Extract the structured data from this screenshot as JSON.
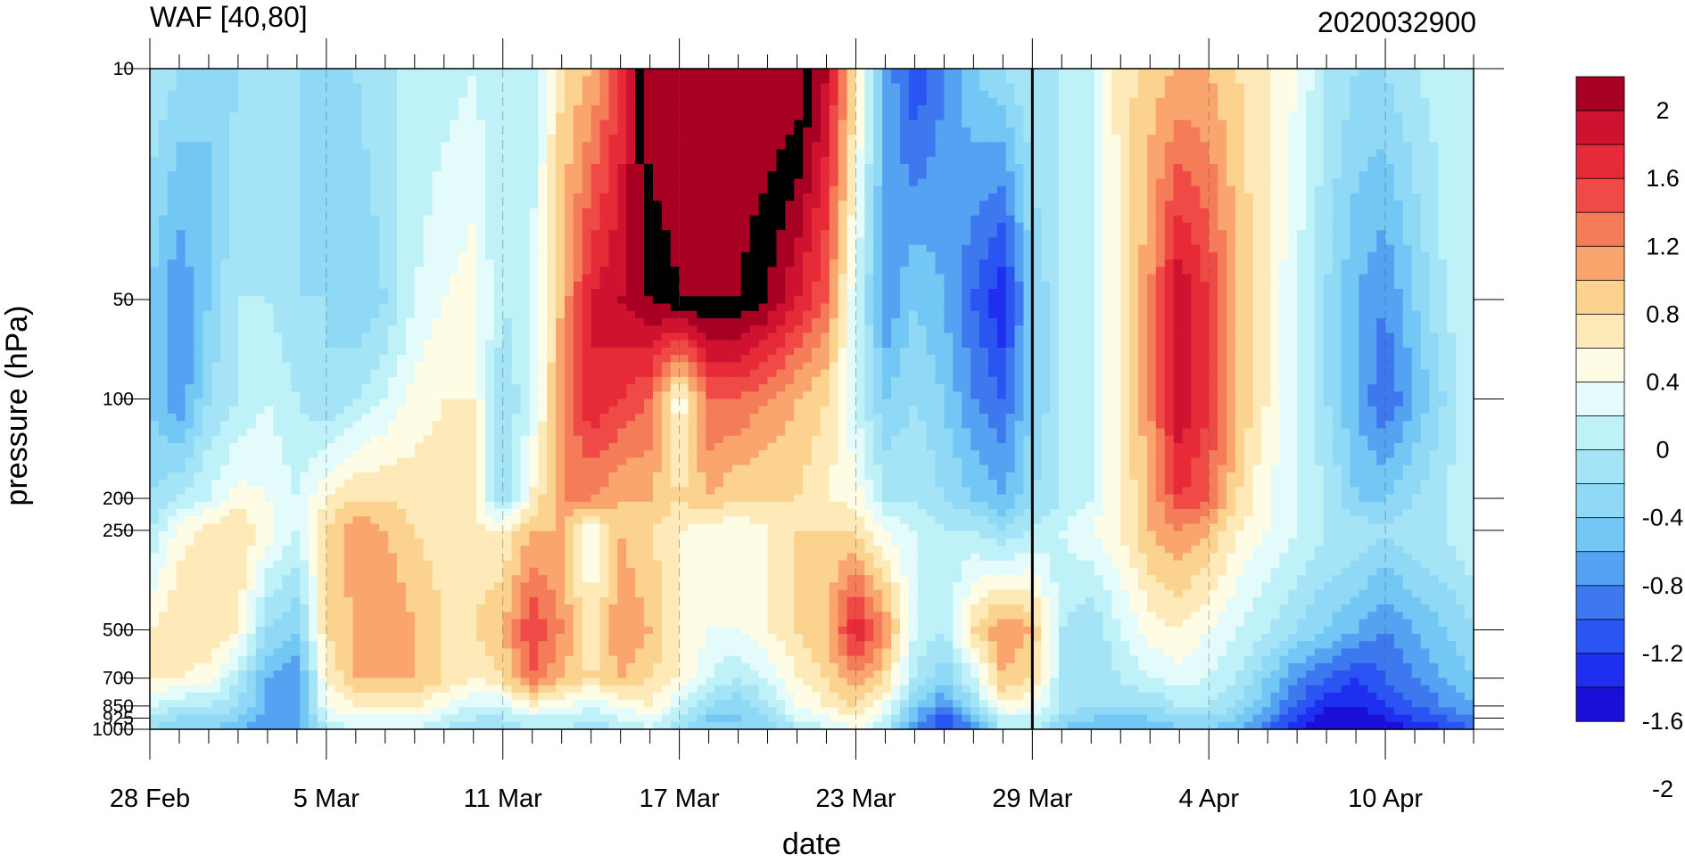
{
  "chart_data": {
    "type": "heatmap",
    "title": "WAF [40,80]",
    "title_right": "2020032900",
    "xlabel": "date",
    "ylabel": "pressure (hPa)",
    "x_ticks": [
      "28 Feb",
      "5 Mar",
      "11 Mar",
      "17 Mar",
      "23 Mar",
      "29 Mar",
      "4 Apr",
      "10 Apr"
    ],
    "x_range": [
      "28 Feb",
      "13 Apr"
    ],
    "y_scale": "log",
    "y_ticks": [
      10,
      50,
      100,
      200,
      250,
      500,
      700,
      850,
      925,
      1000
    ],
    "y_range": [
      1000,
      10
    ],
    "y_tick_labels": [
      "10",
      "50",
      "100",
      "200",
      "250",
      "500",
      "700",
      "850",
      "925",
      "1000"
    ],
    "marker_line_date": "29 Mar",
    "colorbar": {
      "levels": [
        -2,
        -1.8,
        -1.6,
        -1.4,
        -1.2,
        -1,
        -0.8,
        -0.6,
        -0.4,
        -0.2,
        0,
        0.2,
        0.4,
        0.6,
        0.8,
        1,
        1.2,
        1.4,
        1.6,
        1.8,
        2
      ],
      "labels": [
        "2",
        "1.6",
        "1.2",
        "0.8",
        "0.4",
        "0",
        "-0.4",
        "-0.8",
        "-1.2",
        "-1.6",
        "-2"
      ],
      "colors": [
        "#1a0fd6",
        "#1f2ff0",
        "#2a55f2",
        "#3d78ef",
        "#55a2f2",
        "#72c7f5",
        "#8fd8f6",
        "#a5e4f7",
        "#bff1f8",
        "#e3fbfb",
        "#fffce6",
        "#fdeab8",
        "#fcd28f",
        "#f9a56d",
        "#f47c58",
        "#f04a47",
        "#e72a37",
        "#cf1230",
        "#a80022"
      ]
    },
    "days": [
      "28 Feb",
      "29 Feb",
      "1 Mar",
      "2 Mar",
      "3 Mar",
      "4 Mar",
      "5 Mar",
      "6 Mar",
      "7 Mar",
      "8 Mar",
      "9 Mar",
      "10 Mar",
      "11 Mar",
      "12 Mar",
      "13 Mar",
      "14 Mar",
      "15 Mar",
      "16 Mar",
      "17 Mar",
      "18 Mar",
      "19 Mar",
      "20 Mar",
      "21 Mar",
      "22 Mar",
      "23 Mar",
      "24 Mar",
      "25 Mar",
      "26 Mar",
      "27 Mar",
      "28 Mar",
      "29 Mar",
      "30 Mar",
      "31 Mar",
      "1 Apr",
      "2 Apr",
      "3 Apr",
      "4 Apr",
      "5 Apr",
      "6 Apr",
      "7 Apr",
      "8 Apr",
      "9 Apr",
      "10 Apr",
      "11 Apr",
      "12 Apr",
      "13 Apr"
    ],
    "levels_hPa": [
      10,
      50,
      100,
      200,
      250,
      500,
      700,
      850,
      925,
      1000
    ],
    "values": [
      [
        -0.4,
        -0.6,
        -0.8,
        -0.6,
        -0.4,
        -0.6,
        -0.8,
        -0.6,
        -0.4,
        -0.4,
        -0.3,
        -0.2,
        -0.4,
        -0.3,
        0.4,
        0.6,
        1.2,
        2.2,
        2.2,
        2.2,
        2.2,
        2.2,
        2.2,
        1.6,
        0.4,
        -1.0,
        -1.6,
        -1.2,
        -0.8,
        -0.6,
        -0.4,
        -0.4,
        -0.2,
        0.3,
        0.5,
        0.6,
        0.6,
        0.4,
        0.2,
        0.0,
        -0.4,
        -0.6,
        -0.6,
        -0.4,
        -0.3,
        -0.2
      ],
      [
        -0.8,
        -1.2,
        -0.8,
        -0.4,
        -0.4,
        -0.6,
        -0.6,
        -0.8,
        -0.6,
        -0.2,
        0.0,
        0.1,
        -0.4,
        -0.2,
        0.6,
        1.4,
        1.6,
        1.8,
        2.0,
        2.0,
        2.0,
        1.8,
        1.4,
        1.0,
        -0.2,
        -1.2,
        -0.8,
        -1.0,
        -1.4,
        -1.8,
        -0.8,
        -0.4,
        -0.2,
        0.2,
        0.8,
        1.6,
        1.2,
        0.6,
        0.2,
        -0.2,
        -0.6,
        -1.0,
        -1.2,
        -0.8,
        -0.4,
        -0.2
      ],
      [
        -0.8,
        -1.2,
        -0.6,
        -0.4,
        -0.2,
        -0.4,
        -0.6,
        -0.4,
        -0.2,
        0.1,
        0.2,
        0.2,
        -0.6,
        -0.2,
        0.8,
        1.4,
        1.2,
        1.0,
        0.0,
        1.0,
        1.0,
        0.8,
        0.6,
        0.4,
        -0.2,
        -0.8,
        -0.6,
        -0.8,
        -1.2,
        -1.4,
        -0.8,
        -0.4,
        -0.2,
        0.2,
        0.8,
        1.6,
        1.2,
        0.6,
        0.2,
        -0.2,
        -0.6,
        -1.0,
        -1.4,
        -1.0,
        -0.6,
        -0.2
      ],
      [
        -0.6,
        -0.4,
        -0.2,
        0.1,
        0.0,
        -0.2,
        0.2,
        0.4,
        0.4,
        0.3,
        0.3,
        0.2,
        -0.6,
        0.2,
        0.8,
        0.8,
        0.6,
        0.6,
        0.4,
        0.6,
        0.4,
        0.4,
        0.4,
        0.2,
        0.1,
        -0.4,
        -0.4,
        -0.6,
        -0.8,
        -1.0,
        -0.6,
        -0.4,
        -0.2,
        0.2,
        0.6,
        1.2,
        1.0,
        0.4,
        0.0,
        -0.2,
        -0.4,
        -0.8,
        -0.8,
        -0.6,
        -0.4,
        -0.2
      ],
      [
        -0.4,
        0.1,
        0.3,
        0.4,
        0.1,
        -0.2,
        0.4,
        0.8,
        0.6,
        0.4,
        0.3,
        0.3,
        0.2,
        0.6,
        0.6,
        0.0,
        0.6,
        0.4,
        0.2,
        0.1,
        0.0,
        0.2,
        0.4,
        0.4,
        0.4,
        0.0,
        -0.2,
        -0.4,
        -0.4,
        -0.6,
        -0.4,
        -0.2,
        0.0,
        0.2,
        0.6,
        0.8,
        0.6,
        0.2,
        0.0,
        -0.2,
        -0.4,
        -0.4,
        -0.6,
        -0.4,
        -0.4,
        -0.2
      ],
      [
        0.2,
        0.4,
        0.4,
        0.2,
        -0.6,
        -0.8,
        0.4,
        0.6,
        0.8,
        0.6,
        0.4,
        0.4,
        0.6,
        1.2,
        0.8,
        0.2,
        0.8,
        0.6,
        0.2,
        0.0,
        0.0,
        0.2,
        0.4,
        0.6,
        1.4,
        0.8,
        -0.2,
        -0.4,
        0.4,
        0.8,
        0.6,
        -0.4,
        -0.6,
        -0.2,
        0.1,
        0.2,
        0.0,
        -0.2,
        -0.4,
        -0.6,
        -0.8,
        -1.0,
        -1.2,
        -1.0,
        -0.8,
        -0.6
      ],
      [
        0.2,
        0.2,
        0.1,
        -0.4,
        -1.0,
        -1.2,
        0.2,
        0.6,
        0.6,
        0.6,
        0.4,
        0.2,
        0.4,
        1.0,
        0.6,
        0.4,
        0.6,
        0.4,
        0.2,
        -0.2,
        -0.4,
        -0.2,
        0.2,
        0.4,
        0.8,
        0.4,
        -0.4,
        -0.8,
        -0.2,
        0.6,
        0.4,
        -0.4,
        -0.6,
        -0.4,
        -0.2,
        -0.1,
        -0.2,
        -0.4,
        -0.8,
        -1.2,
        -1.4,
        -1.6,
        -1.4,
        -1.2,
        -1.0,
        -0.8
      ],
      [
        -0.2,
        -0.4,
        -0.4,
        -0.6,
        -1.0,
        -1.2,
        0.0,
        0.2,
        0.2,
        0.2,
        0.0,
        -0.2,
        -0.2,
        0.2,
        0.0,
        -0.2,
        0.0,
        0.2,
        -0.2,
        -0.6,
        -0.8,
        -0.4,
        0.0,
        0.2,
        0.4,
        0.0,
        -0.8,
        -1.2,
        -0.6,
        0.2,
        0.0,
        -0.4,
        -0.6,
        -0.6,
        -0.6,
        -0.4,
        -0.4,
        -0.6,
        -1.0,
        -1.4,
        -1.8,
        -1.8,
        -1.6,
        -1.4,
        -1.2,
        -1.0
      ],
      [
        -0.4,
        -0.6,
        -0.6,
        -0.8,
        -1.2,
        -1.2,
        -0.2,
        0.0,
        0.0,
        0.0,
        -0.2,
        -0.4,
        -0.4,
        -0.2,
        -0.2,
        -0.4,
        -0.2,
        0.0,
        -0.4,
        -0.8,
        -0.8,
        -0.6,
        -0.2,
        0.0,
        0.2,
        -0.2,
        -1.0,
        -1.6,
        -1.0,
        -0.2,
        -0.2,
        -0.6,
        -0.8,
        -0.8,
        -0.8,
        -0.6,
        -0.6,
        -0.8,
        -1.2,
        -1.6,
        -2.0,
        -2.0,
        -1.8,
        -1.6,
        -1.4,
        -1.2
      ],
      [
        -0.6,
        -0.8,
        -0.8,
        -1.0,
        -1.2,
        -1.2,
        -0.4,
        -0.2,
        -0.2,
        -0.2,
        -0.4,
        -0.6,
        -0.6,
        -0.4,
        -0.4,
        -0.6,
        -0.4,
        -0.2,
        -0.6,
        -0.8,
        -0.8,
        -0.8,
        -0.4,
        -0.2,
        0.0,
        -0.4,
        -1.2,
        -1.6,
        -1.2,
        -0.4,
        -0.4,
        -0.8,
        -1.0,
        -1.0,
        -1.0,
        -0.8,
        -0.8,
        -1.0,
        -1.4,
        -1.8,
        -2.0,
        -2.0,
        -2.0,
        -1.8,
        -1.6,
        -1.4
      ]
    ]
  }
}
